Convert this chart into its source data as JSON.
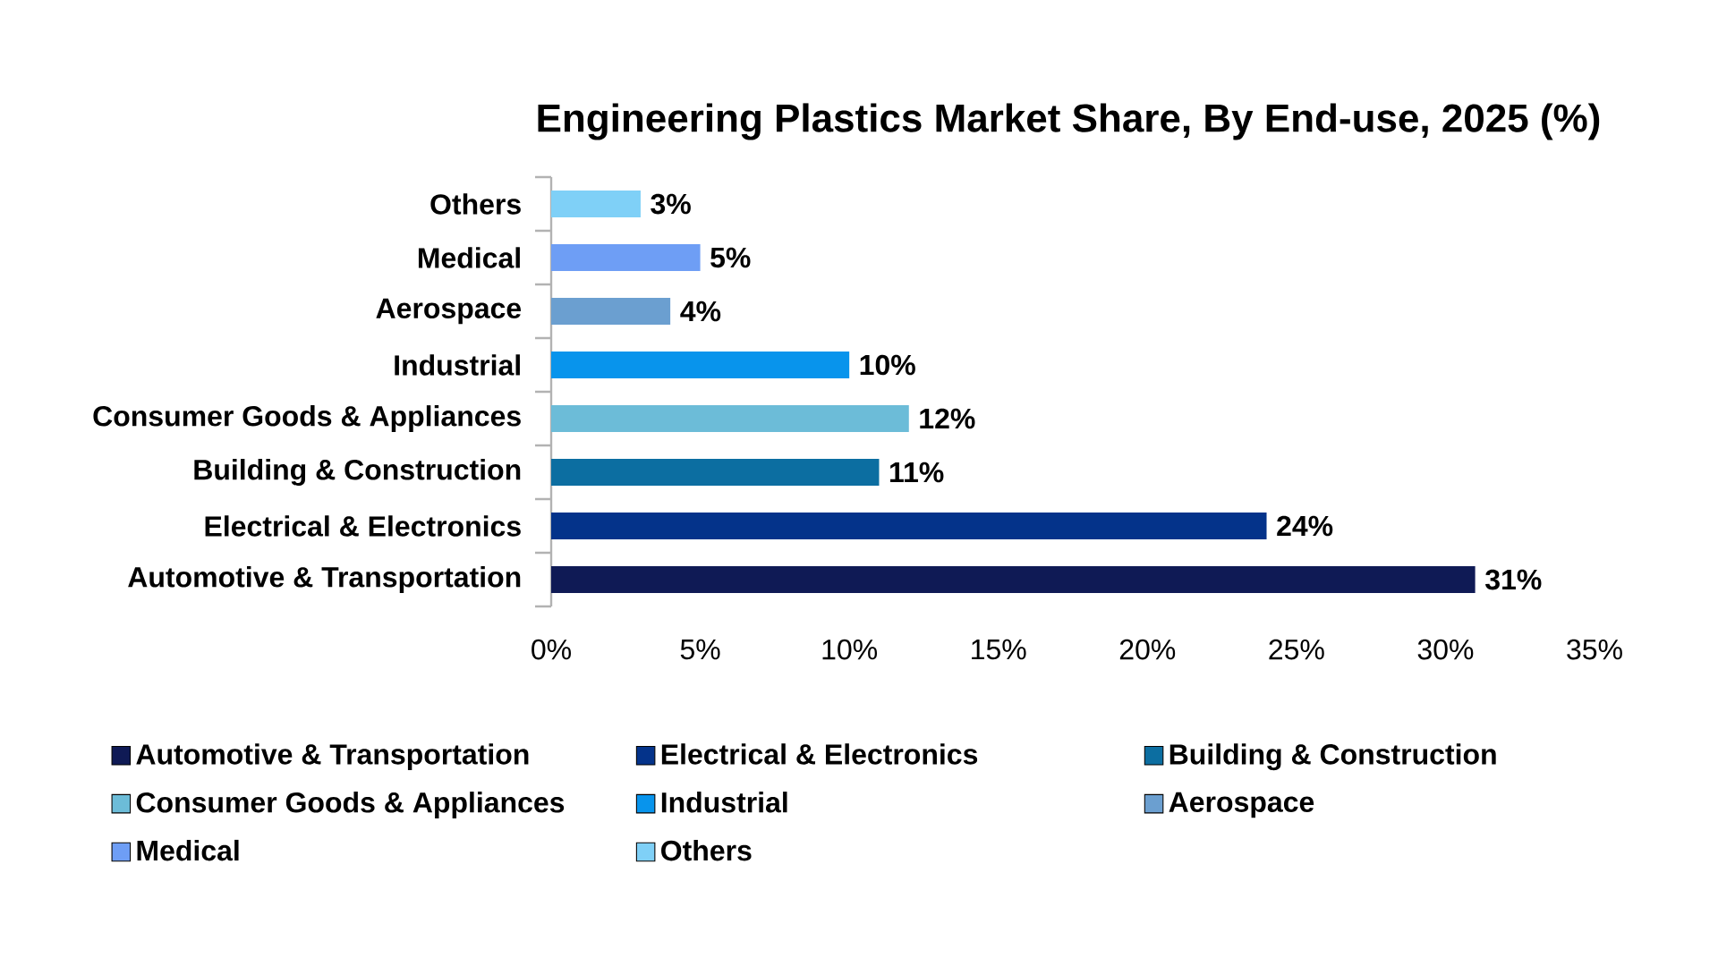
{
  "chart_data": {
    "type": "bar",
    "orientation": "horizontal",
    "title": "Engineering Plastics Market Share, By End-use, 2025 (%)",
    "categories": [
      "Others",
      "Medical",
      "Aerospace",
      "Industrial",
      "Consumer Goods & Appliances",
      "Building & Construction",
      "Electrical & Electronics",
      "Automotive & Transportation"
    ],
    "series": [
      {
        "name": "Automotive & Transportation",
        "color": "#0f1a55",
        "values": [
          null,
          null,
          null,
          null,
          null,
          null,
          null,
          31
        ],
        "value_labels": [
          null,
          null,
          null,
          null,
          null,
          null,
          null,
          "31%"
        ]
      },
      {
        "name": "Electrical & Electronics",
        "color": "#04338a",
        "values": [
          null,
          null,
          null,
          null,
          null,
          null,
          24,
          null
        ],
        "value_labels": [
          null,
          null,
          null,
          null,
          null,
          null,
          "24%",
          null
        ]
      },
      {
        "name": "Building & Construction",
        "color": "#0c6ea1",
        "values": [
          null,
          null,
          null,
          null,
          null,
          11,
          null,
          null
        ],
        "value_labels": [
          null,
          null,
          null,
          null,
          null,
          "11%",
          null,
          null
        ]
      },
      {
        "name": "Consumer Goods & Appliances",
        "color": "#6cbcd8",
        "values": [
          null,
          null,
          null,
          null,
          12,
          null,
          null,
          null
        ],
        "value_labels": [
          null,
          null,
          null,
          null,
          "12%",
          null,
          null,
          null
        ]
      },
      {
        "name": "Industrial",
        "color": "#0894ec",
        "values": [
          null,
          null,
          null,
          10,
          null,
          null,
          null,
          null
        ],
        "value_labels": [
          null,
          null,
          null,
          "10%",
          null,
          null,
          null,
          null
        ]
      },
      {
        "name": "Aerospace",
        "color": "#6b9fd0",
        "values": [
          null,
          null,
          4,
          null,
          null,
          null,
          null,
          null
        ],
        "value_labels": [
          null,
          null,
          "4%",
          null,
          null,
          null,
          null,
          null
        ]
      },
      {
        "name": "Medical",
        "color": "#6e9ef5",
        "values": [
          null,
          5,
          null,
          null,
          null,
          null,
          null,
          null
        ],
        "value_labels": [
          null,
          "5%",
          null,
          null,
          null,
          null,
          null,
          null
        ]
      },
      {
        "name": "Others",
        "color": "#7fd0f7",
        "values": [
          3,
          null,
          null,
          null,
          null,
          null,
          null,
          null
        ],
        "value_labels": [
          "3%",
          null,
          null,
          null,
          null,
          null,
          null,
          null
        ]
      }
    ],
    "xlim": [
      0,
      35
    ],
    "xticks": [
      {
        "value": 0,
        "label": "0%"
      },
      {
        "value": 5,
        "label": "5%"
      },
      {
        "value": 10,
        "label": "10%"
      },
      {
        "value": 15,
        "label": "15%"
      },
      {
        "value": 20,
        "label": "20%"
      },
      {
        "value": 25,
        "label": "25%"
      },
      {
        "value": 30,
        "label": "30%"
      },
      {
        "value": 35,
        "label": "35%"
      }
    ],
    "legend": "bottom"
  }
}
